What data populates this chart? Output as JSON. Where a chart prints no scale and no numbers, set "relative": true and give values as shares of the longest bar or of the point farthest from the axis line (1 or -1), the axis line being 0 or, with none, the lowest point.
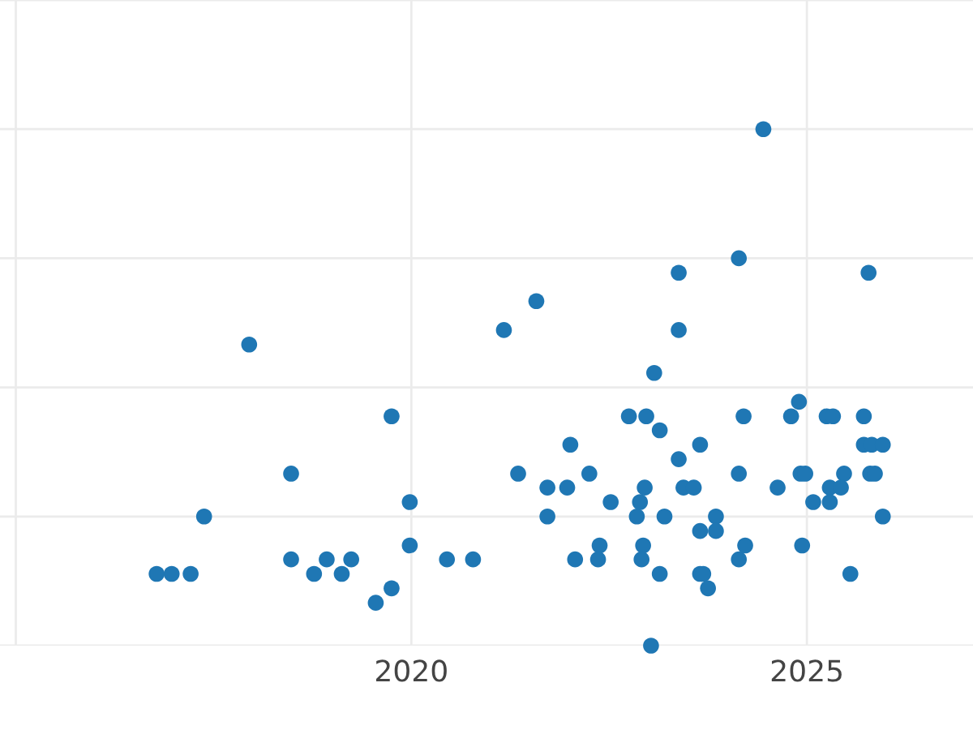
{
  "chart_data": {
    "type": "scatter",
    "relative": true,
    "grid": true,
    "marker": "circle",
    "xlim": [
      2014.8,
      2027.1
    ],
    "xticks": [
      {
        "value": 2015,
        "label": null
      },
      2020,
      2025
    ],
    "series": [
      {
        "color": "#1f77b4",
        "x": [
          2016.78,
          2016.97,
          2017.21,
          2017.38,
          2017.95,
          2018.48,
          2018.48,
          2018.77,
          2018.93,
          2019.12,
          2019.24,
          2019.55,
          2019.75,
          2019.75,
          2019.98,
          2019.98,
          2020.45,
          2020.78,
          2021.17,
          2021.58,
          2021.35,
          2021.72,
          2021.72,
          2021.97,
          2022.25,
          2022.52,
          2022.07,
          2022.38,
          2022.36,
          2022.01,
          2022.75,
          2022.97,
          2023.07,
          2023.14,
          2023.38,
          2023.38,
          2023.38,
          2023.65,
          2022.89,
          2022.85,
          2022.95,
          2023.2,
          2022.93,
          2022.91,
          2023.14,
          2023.44,
          2023.57,
          2023.85,
          2023.65,
          2023.85,
          2023.65,
          2023.69,
          2023.75,
          2023.03,
          2024.45,
          2024.14,
          2025.78,
          2024.2,
          2024.8,
          2024.9,
          2025.25,
          2025.33,
          2025.72,
          2025.72,
          2025.82,
          2025.96,
          2024.14,
          2024.63,
          2024.92,
          2024.98,
          2025.47,
          2025.29,
          2025.43,
          2025.08,
          2025.29,
          2025.8,
          2025.86,
          2025.96,
          2024.22,
          2024.14,
          2024.94,
          2025.55
        ],
        "values": [
          0.139,
          0.139,
          0.139,
          0.25,
          0.583,
          0.333,
          0.167,
          0.139,
          0.167,
          0.139,
          0.167,
          0.083,
          0.111,
          0.444,
          0.278,
          0.194,
          0.167,
          0.167,
          0.611,
          0.667,
          0.333,
          0.306,
          0.25,
          0.306,
          0.333,
          0.278,
          0.167,
          0.194,
          0.167,
          0.389,
          0.444,
          0.444,
          0.528,
          0.417,
          0.722,
          0.611,
          0.361,
          0.389,
          0.278,
          0.25,
          0.306,
          0.25,
          0.194,
          0.167,
          0.139,
          0.306,
          0.306,
          0.25,
          0.222,
          0.222,
          0.139,
          0.139,
          0.111,
          0,
          1,
          0.75,
          0.722,
          0.444,
          0.444,
          0.472,
          0.444,
          0.444,
          0.444,
          0.389,
          0.389,
          0.389,
          0.333,
          0.306,
          0.333,
          0.333,
          0.333,
          0.306,
          0.306,
          0.278,
          0.278,
          0.333,
          0.333,
          0.25,
          0.194,
          0.167,
          0.194,
          0.139
        ]
      }
    ]
  }
}
